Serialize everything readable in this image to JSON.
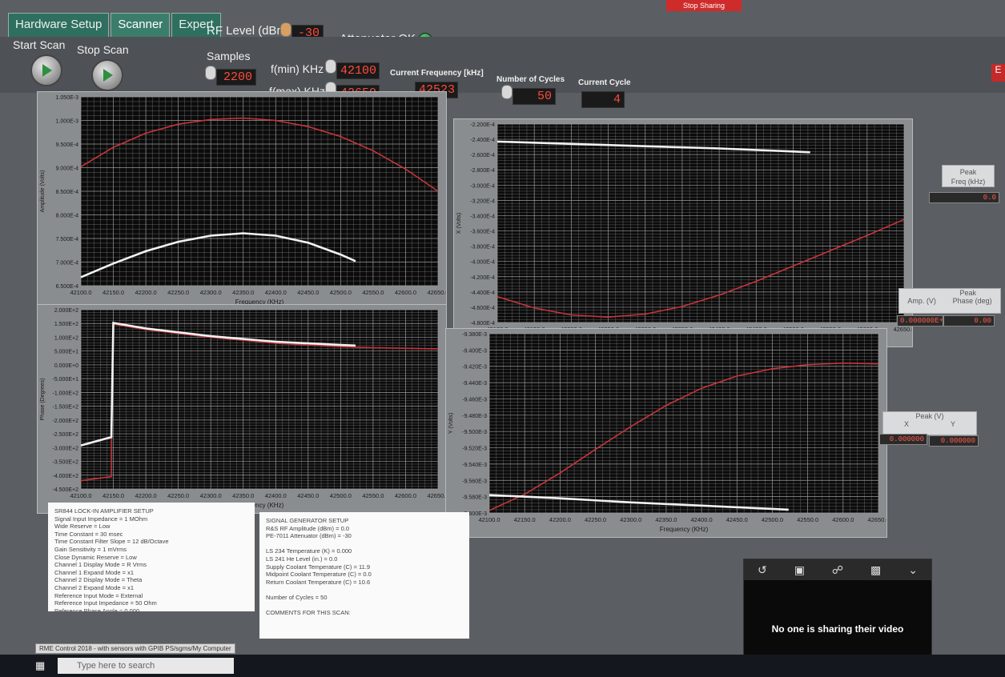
{
  "tabs": [
    "Hardware Setup",
    "Scanner",
    "Expert"
  ],
  "rf_level": {
    "label": "RF Level (dBm)",
    "value": "-30"
  },
  "attenuator": {
    "label": "Attenuator OK"
  },
  "buttons": {
    "start_scan": "Start Scan",
    "stop_scan": "Stop Scan"
  },
  "samples": {
    "label": "Samples",
    "value": "2200"
  },
  "fmin": {
    "label": "f(min) KHz",
    "value": "42100"
  },
  "fmax": {
    "label": "f(max) KHz",
    "value": "42650"
  },
  "current_frequency": {
    "label": "Current Frequency [kHz]",
    "value": "42523"
  },
  "num_cycles": {
    "label": "Number of Cycles",
    "value": "50"
  },
  "current_cycle": {
    "label": "Current Cycle",
    "value": "4"
  },
  "colors": {
    "plot_bg": "#0b0b0b",
    "grid": "#9a9a9a",
    "red_trace": "#c8343a",
    "white_trace": "#f2f2f2",
    "indicator_text": "#ff4b3a"
  },
  "chart_data": [
    {
      "type": "line",
      "xlabel": "Frequency (KHz)",
      "ylabel": "Amplitude (Volts)",
      "xlim": [
        42100,
        42650
      ],
      "ylim": [
        0.00065,
        0.00105
      ],
      "x_ticks": [
        "42100.0",
        "42150.0",
        "42200.0",
        "42250.0",
        "42300.0",
        "42350.0",
        "42400.0",
        "42450.0",
        "42500.0",
        "42550.0",
        "42600.0",
        "42650.0"
      ],
      "y_ticks": [
        "1.050E-3",
        "1.000E-3",
        "9.500E-4",
        "9.000E-4",
        "8.500E-4",
        "8.000E-4",
        "7.500E-4",
        "7.000E-4",
        "6.500E-4"
      ],
      "grid": true,
      "series": [
        {
          "color": "red",
          "x": [
            42100,
            42150,
            42200,
            42250,
            42300,
            42350,
            42400,
            42450,
            42500,
            42550,
            42600,
            42650
          ],
          "y": [
            0.000902,
            0.000943,
            0.000973,
            0.000992,
            0.001002,
            0.001005,
            0.001,
            0.000987,
            0.000966,
            0.000936,
            0.000897,
            0.00085
          ]
        },
        {
          "color": "white",
          "x": [
            42100,
            42150,
            42200,
            42250,
            42300,
            42350,
            42400,
            42450,
            42500,
            42523
          ],
          "y": [
            0.000668,
            0.000697,
            0.000723,
            0.000743,
            0.000756,
            0.000761,
            0.000756,
            0.000741,
            0.000716,
            0.000702
          ]
        }
      ]
    },
    {
      "type": "line",
      "xlabel": "Frequency (KHz)",
      "ylabel": "X (Volts)",
      "xlim": [
        42100,
        42650
      ],
      "ylim": [
        -0.00048,
        -0.00022
      ],
      "x_ticks": [
        "42100.0",
        "42150.0",
        "42200.0",
        "42250.0",
        "42300.0",
        "42350.0",
        "42400.0",
        "42450.0",
        "42500.0",
        "42550.0",
        "42600.0",
        "42650.0"
      ],
      "y_ticks": [
        "-2.200E-4",
        "-2.400E-4",
        "-2.600E-4",
        "-2.800E-4",
        "-3.000E-4",
        "-3.200E-4",
        "-3.400E-4",
        "-3.600E-4",
        "-3.800E-4",
        "-4.000E-4",
        "-4.200E-4",
        "-4.400E-4",
        "-4.600E-4",
        "-4.800E-4"
      ],
      "grid": true,
      "series": [
        {
          "color": "red",
          "x": [
            42100,
            42150,
            42200,
            42250,
            42300,
            42350,
            42400,
            42450,
            42500,
            42550,
            42600,
            42650
          ],
          "y": [
            -0.000446,
            -0.000461,
            -0.00047,
            -0.000473,
            -0.000469,
            -0.000459,
            -0.000444,
            -0.000426,
            -0.000406,
            -0.000386,
            -0.000366,
            -0.000345
          ]
        },
        {
          "color": "white",
          "x": [
            42100,
            42200,
            42300,
            42400,
            42500,
            42523
          ],
          "y": [
            -0.000243,
            -0.000246,
            -0.000249,
            -0.000252,
            -0.000256,
            -0.000257
          ]
        }
      ]
    },
    {
      "type": "line",
      "xlabel": "Frequency (KHz)",
      "ylabel": "Phase (Degrees)",
      "xlim": [
        42100,
        42650
      ],
      "ylim": [
        -450,
        200
      ],
      "x_ticks": [
        "42100.0",
        "42150.0",
        "42200.0",
        "42250.0",
        "42300.0",
        "42350.0",
        "42400.0",
        "42450.0",
        "42500.0",
        "42550.0",
        "42600.0",
        "42650.0"
      ],
      "y_ticks": [
        "2.000E+2",
        "1.500E+2",
        "1.000E+2",
        "5.000E+1",
        "0.000E+0",
        "-5.000E+1",
        "-1.000E+2",
        "-1.500E+2",
        "-2.000E+2",
        "-2.500E+2",
        "-3.000E+2",
        "-3.500E+2",
        "-4.000E+2",
        "-4.500E+2"
      ],
      "grid": true,
      "series": [
        {
          "color": "red",
          "x": [
            42100,
            42147,
            42147,
            42150,
            42200,
            42300,
            42400,
            42500,
            42550,
            42650
          ],
          "y": [
            -420,
            -405,
            -250,
            148,
            128,
            100,
            78,
            66,
            62,
            58
          ]
        },
        {
          "color": "white",
          "x": [
            42100,
            42147,
            42147,
            42150,
            42200,
            42300,
            42400,
            42500,
            42523
          ],
          "y": [
            -292,
            -262,
            -250,
            152,
            132,
            104,
            84,
            72,
            70
          ]
        }
      ]
    },
    {
      "type": "line",
      "xlabel": "Frequency (KHz)",
      "ylabel": "Y (Volts)",
      "xlim": [
        42100,
        42650
      ],
      "ylim": [
        -0.0096,
        -0.00938
      ],
      "x_ticks": [
        "42100.0",
        "42150.0",
        "42200.0",
        "42250.0",
        "42300.0",
        "42350.0",
        "42400.0",
        "42450.0",
        "42500.0",
        "42550.0",
        "42600.0",
        "42650.0"
      ],
      "y_ticks": [
        "-9.380E-3",
        "-9.400E-3",
        "-9.420E-3",
        "-9.440E-3",
        "-9.460E-3",
        "-9.480E-3",
        "-9.500E-3",
        "-9.520E-3",
        "-9.540E-3",
        "-9.560E-3",
        "-9.580E-3",
        "-9.600E-3"
      ],
      "grid": true,
      "series": [
        {
          "color": "red",
          "x": [
            42100,
            42150,
            42200,
            42250,
            42300,
            42350,
            42400,
            42450,
            42500,
            42550,
            42600,
            42650
          ],
          "y": [
            -0.009597,
            -0.009577,
            -0.009551,
            -0.009522,
            -0.009494,
            -0.009468,
            -0.009447,
            -0.009432,
            -0.009423,
            -0.009418,
            -0.009416,
            -0.009417
          ]
        },
        {
          "color": "white",
          "x": [
            42100,
            42200,
            42300,
            42400,
            42500,
            42523
          ],
          "y": [
            -0.009578,
            -0.009582,
            -0.009587,
            -0.009591,
            -0.009595,
            -0.009596
          ]
        }
      ]
    }
  ],
  "peak_freq": {
    "label1": "Peak",
    "label2": "Freq (kHz)",
    "value": "0.0"
  },
  "peak_phase": {
    "title": "Peak",
    "amp_label": "Amp. (V)",
    "phase_label": "Phase (deg)",
    "amp_value": "0.000000E+0",
    "phase_value": "0.00"
  },
  "peak_v": {
    "title": "Peak (V)",
    "x_label": "X",
    "y_label": "Y",
    "x_value": "0.000000",
    "y_value": "0.000000"
  },
  "lockin_text": "SR844 LOCK-IN AMPLIFIER SETUP\nSignal Input Impedance = 1 MOhm\nWide Reserve = Low\nTime Constant = 30 msec\nTime Constant Filter Slope = 12 dB/Octave\nGain Sensitivity = 1 mVrms\nClose Dynamic Reserve = Low\nChannel 1 Display Mode = R Vrms\nChannel 1 Expand Mode = x1\nChannel 2 Display Mode = Theta\nChannel 2 Expand Mode = x1\nReference Input Mode = External\nReference Input Impedance = 50 Ohm\nReference Phase Angle = 0.000",
  "siggen_text": "SIGNAL GENERATOR SETUP\nR&S RF Amplitude (dBm) = 0.0\nPE-7011 Attenuator (dBm) = -30\n\nLS 234 Temperature (K) = 0.000\nLS 241 He Level (in.) = 0.0\nSupply Coolant Temperature (C) = 11.9\nMidpoint Coolant Temperature (C) = 0.0\nReturn Coolant Temperature (C) = 10.6\n\nNumber of Cycles = 50\n\nCOMMENTS FOR THIS SCAN:",
  "video": {
    "message": "No one is sharing their video"
  },
  "taskbar": {
    "search_placeholder": "Type here to search",
    "window_title": "RME Control 2018 - with sensors with GPIB PS/sgms/My Computer"
  },
  "share": {
    "stop_label": "Stop Sharing"
  },
  "red_tag": "E"
}
